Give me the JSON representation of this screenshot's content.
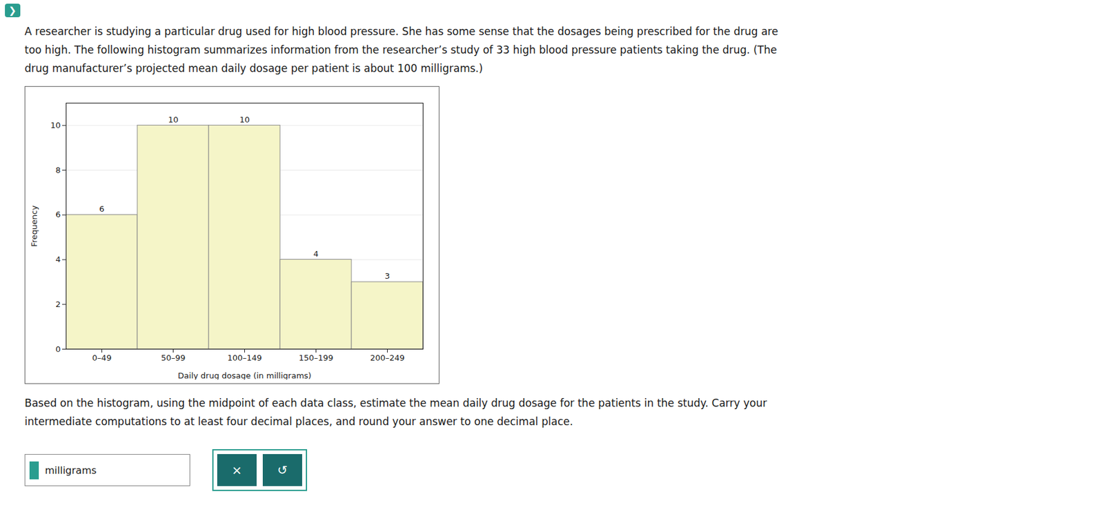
{
  "chart_data": {
    "type": "bar",
    "categories": [
      "0–49",
      "50–99",
      "100–149",
      "150–199",
      "200–249"
    ],
    "values": [
      6,
      10,
      10,
      4,
      3
    ],
    "color": "#f5f5c8",
    "xlabel": "Daily drug dosage (in milligrams)",
    "ylabel": "Frequency",
    "ylim": [
      0,
      11
    ],
    "yticks": [
      0,
      2,
      4,
      6,
      8,
      10
    ],
    "grid": true,
    "data_labels": true,
    "annotations": [
      "❯",
      "A researcher is studying a particular drug used for high blood pressure. She has some sense that the dosages being prescribed for the drug are",
      "too high. The following histogram summarizes information from the researcher’s study of 33 high blood pressure patients taking the drug. (The",
      "drug manufacturer’s projected mean daily dosage per patient is about 100 milligrams.)",
      "Based on the histogram, using the midpoint of each data class, estimate the mean daily drug dosage for the patients in the study. Carry your",
      "intermediate computations to at least four decimal places, and round your answer to one decimal place.",
      "milligrams",
      "×",
      "↺"
    ]
  }
}
